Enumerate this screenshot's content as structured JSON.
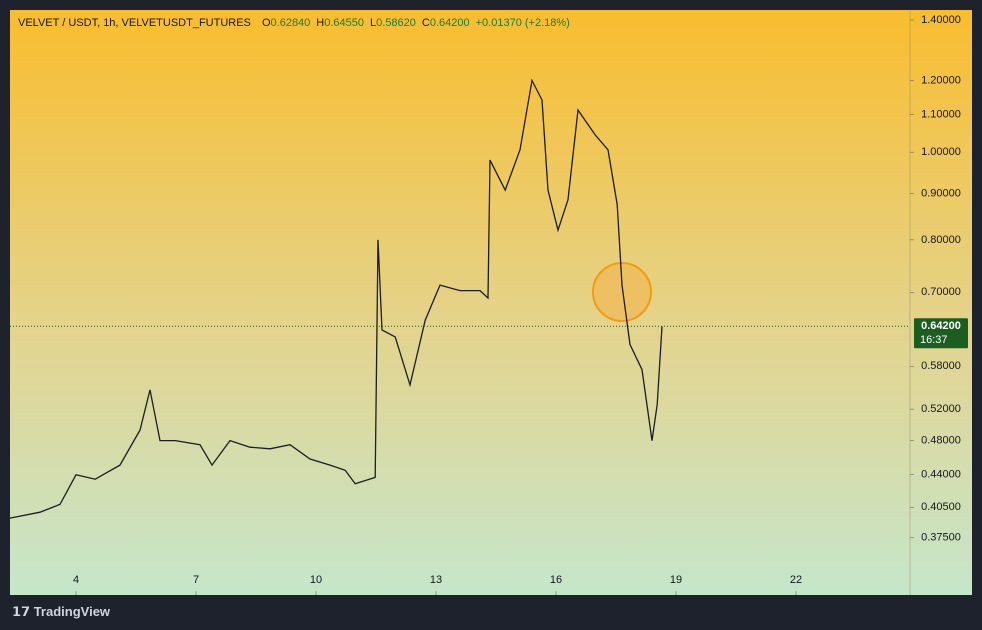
{
  "chart_data": {
    "type": "line",
    "title": "VELVET / USDT, 1h, VELVETUSDT_FUTURES",
    "ohlc": [
      {
        "label": "O",
        "value": "0.62840"
      },
      {
        "label": "H",
        "value": "0.64550"
      },
      {
        "label": "L",
        "value": "0.58620"
      },
      {
        "label": "C",
        "value": "0.64200"
      }
    ],
    "change": "+0.01370 (+2.18%)",
    "x": [
      2.35,
      3.1,
      3.6,
      4.0,
      4.48,
      5.1,
      5.6,
      5.85,
      6.1,
      6.48,
      7.1,
      7.4,
      7.85,
      8.35,
      8.85,
      9.35,
      9.85,
      10.35,
      10.73,
      10.98,
      11.48,
      11.55,
      11.65,
      11.98,
      12.35,
      12.73,
      13.1,
      13.6,
      14.1,
      14.3,
      14.35,
      14.73,
      15.1,
      15.4,
      15.65,
      15.8,
      16.05,
      16.3,
      16.55,
      16.98,
      17.3,
      17.53,
      17.65,
      17.85,
      18.15,
      18.4,
      18.53,
      18.65
    ],
    "series": [
      {
        "name": "VELVETUSDT",
        "color": "#1a1d24",
        "values": [
          0.394,
          0.4,
          0.408,
          0.44,
          0.435,
          0.451,
          0.493,
          0.546,
          0.48,
          0.48,
          0.475,
          0.451,
          0.48,
          0.472,
          0.47,
          0.475,
          0.458,
          0.451,
          0.445,
          0.43,
          0.437,
          0.8,
          0.636,
          0.625,
          0.553,
          0.652,
          0.713,
          0.703,
          0.703,
          0.69,
          0.98,
          0.908,
          1.006,
          1.2,
          1.142,
          0.908,
          0.82,
          0.886,
          1.113,
          1.045,
          1.006,
          0.875,
          0.713,
          0.613,
          0.575,
          0.48,
          0.526,
          0.642
        ]
      }
    ],
    "xlim": [
      2.35,
      24.85
    ],
    "xticks": [
      4,
      7,
      10,
      13,
      16,
      19,
      22
    ],
    "ylim": [
      0.324,
      1.436
    ],
    "log_scale": true,
    "yticks": [
      {
        "value": 1.4,
        "label": "1.40000"
      },
      {
        "value": 1.2,
        "label": "1.20000"
      },
      {
        "value": 1.1,
        "label": "1.10000"
      },
      {
        "value": 1.0,
        "label": "1.00000"
      },
      {
        "value": 0.9,
        "label": "0.90000"
      },
      {
        "value": 0.8,
        "label": "0.80000"
      },
      {
        "value": 0.7,
        "label": "0.70000"
      },
      {
        "value": 0.58,
        "label": "0.58000"
      },
      {
        "value": 0.52,
        "label": "0.52000"
      },
      {
        "value": 0.48,
        "label": "0.48000"
      },
      {
        "value": 0.44,
        "label": "0.44000"
      },
      {
        "value": 0.405,
        "label": "0.40500"
      },
      {
        "value": 0.375,
        "label": "0.37500"
      }
    ],
    "last_price": {
      "value": 0.642,
      "label": "0.64200"
    },
    "countdown": "16:37"
  },
  "brand": "TradingView"
}
